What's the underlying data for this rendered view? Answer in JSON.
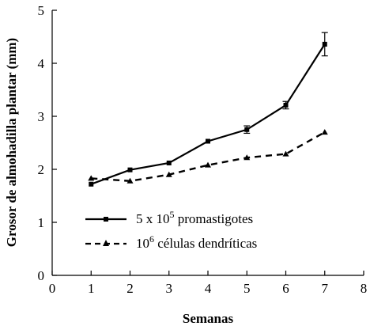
{
  "chart_data": {
    "type": "line",
    "title": "",
    "xlabel": "Semanas",
    "ylabel": "Grosor de almohadilla plantar (mm)",
    "xlim": [
      0,
      8
    ],
    "ylim": [
      0,
      5
    ],
    "xticks": [
      "0",
      "1",
      "2",
      "3",
      "4",
      "5",
      "6",
      "7",
      "8"
    ],
    "yticks": [
      "0",
      "1",
      "2",
      "3",
      "4",
      "5"
    ],
    "grid": false,
    "legend_position": "bottom-left",
    "series": [
      {
        "name_parts": [
          "5 x 10",
          "5",
          " promastigotes"
        ],
        "marker": "square",
        "line_style": "solid",
        "color": "#000000",
        "x": [
          1,
          2,
          3,
          4,
          5,
          6,
          7
        ],
        "y": [
          1.72,
          1.99,
          2.12,
          2.53,
          2.75,
          3.21,
          4.36
        ],
        "error": [
          0,
          0,
          0,
          0,
          0.07,
          0.07,
          0.22
        ]
      },
      {
        "name_parts": [
          "10",
          "6",
          " células dendríticas"
        ],
        "marker": "triangle",
        "line_style": "dashed",
        "color": "#000000",
        "x": [
          1,
          2,
          3,
          4,
          5,
          6,
          7
        ],
        "y": [
          1.83,
          1.78,
          1.9,
          2.08,
          2.22,
          2.29,
          2.7
        ],
        "error": [
          0,
          0,
          0,
          0,
          0,
          0,
          0
        ]
      }
    ]
  }
}
